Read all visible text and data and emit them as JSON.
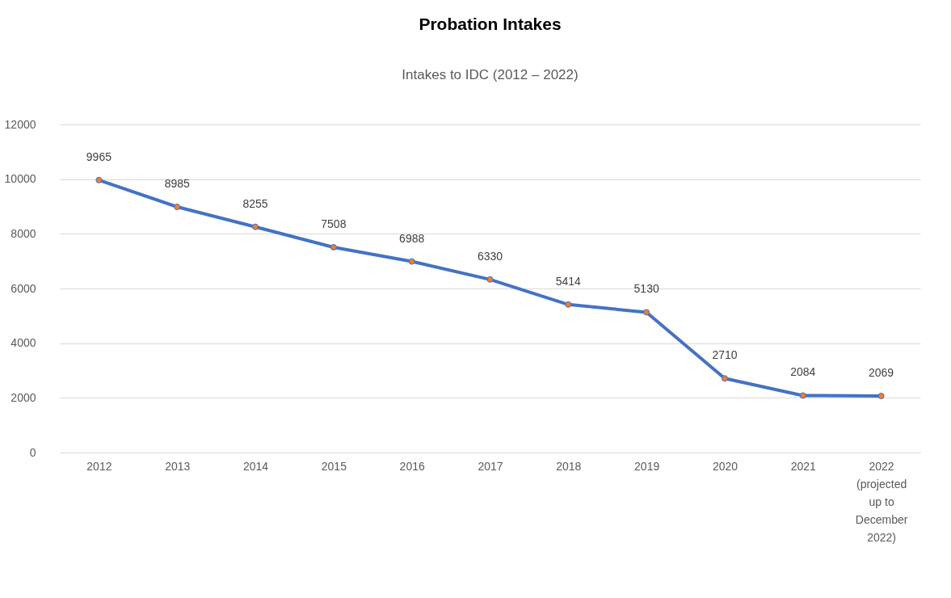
{
  "chart_data": {
    "type": "line",
    "title": "Probation Intakes",
    "subtitle": "Intakes to IDC (2012 – 2022)",
    "categories": [
      "2012",
      "2013",
      "2014",
      "2015",
      "2016",
      "2017",
      "2018",
      "2019",
      "2020",
      "2021",
      "2022 (projected up to December 2022)"
    ],
    "series": [
      {
        "color": "#4472c4",
        "values": [
          9965,
          8985,
          8255,
          7508,
          6988,
          6330,
          5414,
          5130,
          2710,
          2084,
          2069
        ]
      }
    ],
    "ylim": [
      0,
      12000
    ],
    "yticks": [
      0,
      2000,
      4000,
      6000,
      8000,
      10000,
      12000
    ],
    "grid": "y",
    "marker": "circle",
    "data_labels": true
  }
}
